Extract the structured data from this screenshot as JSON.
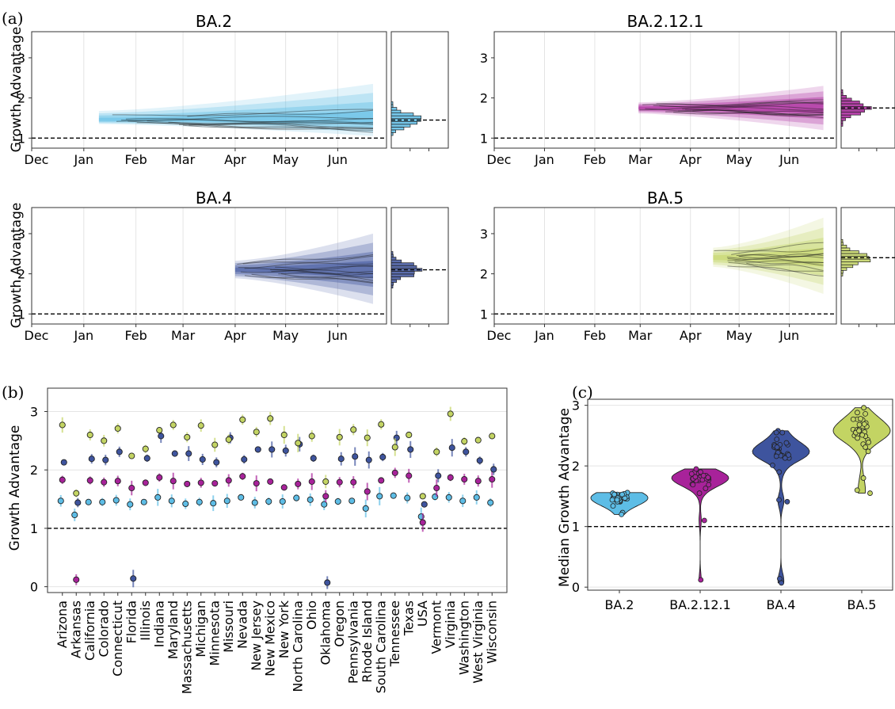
{
  "panel_labels": {
    "a": "(a)",
    "b": "(b)",
    "c": "(c)"
  },
  "colors": {
    "BA.2": "#5dbde6",
    "BA.2.12.1": "#a8229a",
    "BA.4": "#3e549e",
    "BA.5": "#c3d463"
  },
  "chart_data": [
    {
      "type": "area",
      "panel": "a",
      "ylabel": "Growth Advantage",
      "x_ticks": [
        "Dec",
        "Jan",
        "Feb",
        "Mar",
        "Apr",
        "May",
        "Jun"
      ],
      "y_ticks": [
        "1",
        "2",
        "3"
      ],
      "ylim": [
        0.75,
        3.65
      ],
      "reference_line": 1,
      "subplots": [
        {
          "title": "BA.2",
          "variant": "BA.2",
          "start": "2022-01-10",
          "end": "2022-06-22",
          "median": 1.45,
          "band_low": 1.05,
          "band_high": 2.35,
          "hist_median": 1.45
        },
        {
          "title": "BA.2.12.1",
          "variant": "BA.2.12.1",
          "start": "2022-02-28",
          "end": "2022-06-22",
          "median": 1.75,
          "band_low": 1.2,
          "band_high": 2.3,
          "hist_median": 1.75
        },
        {
          "title": "BA.4",
          "variant": "BA.4",
          "start": "2022-04-01",
          "end": "2022-06-22",
          "median": 2.1,
          "band_low": 1.25,
          "band_high": 3.0,
          "hist_median": 2.1
        },
        {
          "title": "BA.5",
          "variant": "BA.5",
          "start": "2022-04-15",
          "end": "2022-06-22",
          "median": 2.4,
          "band_low": 1.5,
          "band_high": 3.4,
          "hist_median": 2.4
        }
      ]
    },
    {
      "type": "scatter",
      "panel": "b",
      "ylabel": "Growth Advantage",
      "ylim": [
        -0.1,
        3.4
      ],
      "y_ticks": [
        "0",
        "1",
        "2",
        "3"
      ],
      "reference_line": 1,
      "categories": [
        "Arizona",
        "Arkansas",
        "California",
        "Colorado",
        "Connecticut",
        "Florida",
        "Illinois",
        "Indiana",
        "Maryland",
        "Massachusetts",
        "Michigan",
        "Minnesota",
        "Missouri",
        "Nevada",
        "New Jersey",
        "New Mexico",
        "New York",
        "North Carolina",
        "Ohio",
        "Oklahoma",
        "Oregon",
        "Pennsylvania",
        "Rhode Island",
        "South Carolina",
        "Tennessee",
        "Texas",
        "USA",
        "Vermont",
        "Virginia",
        "Washington",
        "West Virginia",
        "Wisconsin"
      ],
      "series": [
        {
          "name": "BA.2",
          "values": [
            1.47,
            1.23,
            1.45,
            1.45,
            1.48,
            1.41,
            1.45,
            1.53,
            1.47,
            1.42,
            1.45,
            1.43,
            1.47,
            1.53,
            1.44,
            1.46,
            1.46,
            1.52,
            1.49,
            1.41,
            1.46,
            1.47,
            1.34,
            1.55,
            1.56,
            1.52,
            1.2,
            1.54,
            1.53,
            1.47,
            1.53,
            1.44
          ]
        },
        {
          "name": "BA.2.12.1",
          "values": [
            1.83,
            0.12,
            1.82,
            1.79,
            1.81,
            1.69,
            1.78,
            1.87,
            1.81,
            1.76,
            1.78,
            1.77,
            1.82,
            1.89,
            1.77,
            1.8,
            1.7,
            1.76,
            1.8,
            1.55,
            1.79,
            1.79,
            1.63,
            1.82,
            1.95,
            1.9,
            1.1,
            1.69,
            1.87,
            1.84,
            1.81,
            1.84
          ]
        },
        {
          "name": "BA.4",
          "values": [
            2.13,
            1.44,
            2.19,
            2.17,
            2.31,
            0.14,
            2.2,
            2.58,
            2.28,
            2.28,
            2.18,
            2.13,
            2.55,
            2.18,
            2.35,
            2.35,
            2.33,
            2.44,
            2.2,
            0.07,
            2.19,
            2.23,
            2.17,
            2.22,
            2.55,
            2.35,
            1.41,
            1.9,
            2.38,
            2.31,
            2.16,
            2.01
          ]
        },
        {
          "name": "BA.5",
          "values": [
            2.77,
            1.6,
            2.6,
            2.5,
            2.71,
            2.24,
            2.36,
            2.68,
            2.77,
            2.56,
            2.76,
            2.43,
            2.52,
            2.86,
            2.65,
            2.88,
            2.6,
            2.46,
            2.58,
            1.8,
            2.56,
            2.69,
            2.55,
            2.78,
            2.39,
            2.6,
            1.55,
            2.31,
            2.96,
            2.49,
            2.51,
            2.58
          ]
        }
      ]
    },
    {
      "type": "violin",
      "panel": "c",
      "ylabel": "Median Growth Advantage",
      "ylim": [
        -0.05,
        3.1
      ],
      "y_ticks": [
        "0",
        "1",
        "2",
        "3"
      ],
      "reference_line": 1,
      "categories": [
        "BA.2",
        "BA.2.12.1",
        "BA.4",
        "BA.5"
      ]
    }
  ]
}
